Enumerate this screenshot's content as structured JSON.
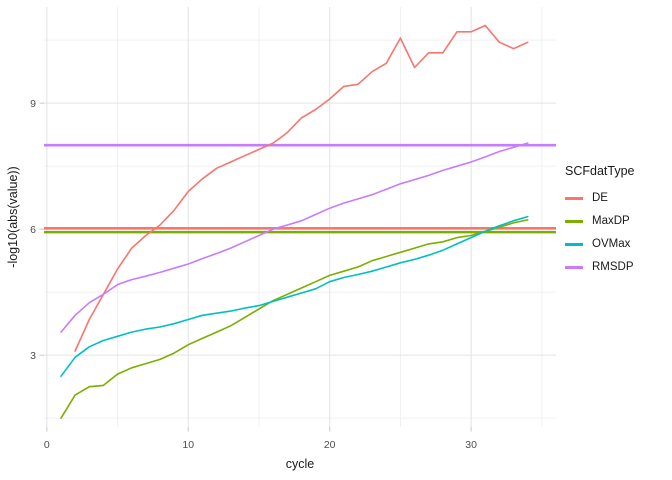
{
  "figure": {
    "background": "#ffffff"
  },
  "chart_data": {
    "type": "line",
    "title": "",
    "xlabel": "cycle",
    "ylabel": "-log10(abs(value))",
    "xlim": [
      -0.2,
      36.0
    ],
    "ylim": [
      1.29,
      11.29
    ],
    "x_major_ticks": [
      0,
      10,
      20,
      30
    ],
    "x_minor_ticks": [
      5,
      15,
      25,
      35
    ],
    "y_major_ticks": [
      3,
      6,
      9
    ],
    "y_minor_ticks": [
      1.5,
      4.5,
      7.5,
      10.5
    ],
    "grid": "major+minor",
    "legend_position": "right",
    "legend_title": "SCFdatType",
    "series": [
      {
        "name": "DE",
        "color": "#F8766D",
        "x": [
          2,
          3,
          4,
          5,
          6,
          7,
          8,
          9,
          10,
          11,
          12,
          13,
          14,
          15,
          16,
          17,
          18,
          19,
          20,
          21,
          22,
          23,
          24,
          25,
          26,
          27,
          28,
          29,
          30,
          31,
          32,
          33,
          34
        ],
        "y": [
          3.1,
          3.85,
          4.45,
          5.05,
          5.55,
          5.85,
          6.1,
          6.45,
          6.9,
          7.2,
          7.45,
          7.6,
          7.75,
          7.9,
          8.05,
          8.3,
          8.65,
          8.85,
          9.1,
          9.4,
          9.45,
          9.75,
          9.95,
          10.55,
          9.85,
          10.2,
          10.2,
          10.7,
          10.7,
          10.85,
          10.45,
          10.3,
          10.45
        ]
      },
      {
        "name": "MaxDP",
        "color": "#7CAE00",
        "x": [
          1,
          2,
          3,
          4,
          5,
          6,
          7,
          8,
          9,
          10,
          11,
          12,
          13,
          14,
          15,
          16,
          17,
          18,
          19,
          20,
          21,
          22,
          23,
          24,
          25,
          26,
          27,
          28,
          29,
          30,
          31,
          32,
          33,
          34
        ],
        "y": [
          1.5,
          2.05,
          2.25,
          2.28,
          2.55,
          2.7,
          2.8,
          2.9,
          3.05,
          3.25,
          3.4,
          3.55,
          3.7,
          3.9,
          4.1,
          4.3,
          4.45,
          4.6,
          4.75,
          4.9,
          5.0,
          5.1,
          5.25,
          5.35,
          5.45,
          5.55,
          5.65,
          5.7,
          5.8,
          5.85,
          5.95,
          6.05,
          6.15,
          6.22
        ]
      },
      {
        "name": "OVMax",
        "color": "#00BFC4",
        "x": [
          1,
          2,
          3,
          4,
          5,
          6,
          7,
          8,
          9,
          10,
          11,
          12,
          13,
          14,
          15,
          16,
          17,
          18,
          19,
          20,
          21,
          22,
          23,
          24,
          25,
          26,
          27,
          28,
          29,
          30,
          31,
          32,
          33,
          34
        ],
        "y": [
          2.5,
          2.95,
          3.2,
          3.35,
          3.45,
          3.55,
          3.62,
          3.67,
          3.75,
          3.85,
          3.95,
          4.0,
          4.05,
          4.12,
          4.18,
          4.28,
          4.38,
          4.48,
          4.58,
          4.75,
          4.85,
          4.92,
          5.0,
          5.1,
          5.2,
          5.28,
          5.38,
          5.5,
          5.65,
          5.8,
          5.95,
          6.08,
          6.2,
          6.3
        ]
      },
      {
        "name": "RMSDP",
        "color": "#C77CFF",
        "x": [
          1,
          2,
          3,
          4,
          5,
          6,
          7,
          8,
          9,
          10,
          11,
          12,
          13,
          14,
          15,
          16,
          17,
          18,
          19,
          20,
          21,
          22,
          23,
          24,
          25,
          26,
          27,
          28,
          29,
          30,
          31,
          32,
          33,
          34
        ],
        "y": [
          3.55,
          3.95,
          4.25,
          4.45,
          4.68,
          4.8,
          4.88,
          4.97,
          5.07,
          5.17,
          5.3,
          5.42,
          5.55,
          5.7,
          5.85,
          6.0,
          6.1,
          6.2,
          6.35,
          6.5,
          6.62,
          6.72,
          6.82,
          6.95,
          7.08,
          7.18,
          7.28,
          7.4,
          7.5,
          7.6,
          7.72,
          7.85,
          7.95,
          8.05
        ]
      }
    ],
    "hlines": [
      {
        "y": 5.93,
        "color": "#7CAE00",
        "stroke_width": 2.4
      },
      {
        "y": 6.02,
        "color": "#F8766D",
        "stroke_width": 2.6
      },
      {
        "y": 8.0,
        "color": "#C77CFF",
        "stroke_width": 2.6
      }
    ],
    "colors": {
      "major_grid": "#e3e3e3",
      "minor_grid": "#f0f0f0",
      "tick_mark": "#c9c9c9",
      "tick_label": "#4d4d4d",
      "axis_title": "#1a1a1a"
    }
  }
}
